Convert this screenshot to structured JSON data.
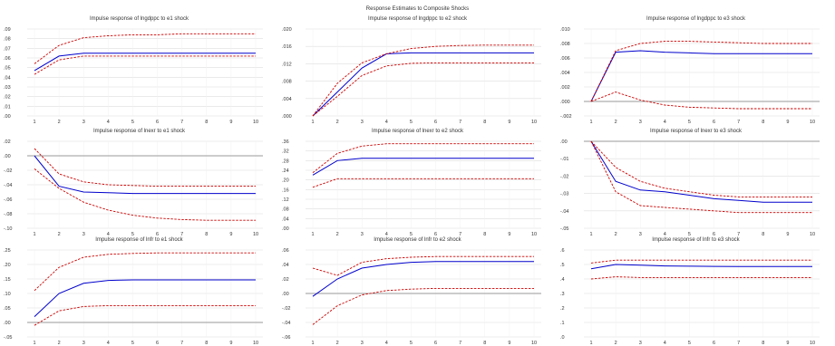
{
  "title": "Response Estimates to Composite Shocks",
  "x_ticks": [
    "1",
    "2",
    "3",
    "4",
    "5",
    "6",
    "7",
    "8",
    "9",
    "10"
  ],
  "colors": {
    "response": "#0000cc",
    "band": "#cc0000",
    "grid": "#dddddd",
    "zero": "#9a9a9a"
  },
  "chart_data": [
    {
      "type": "line",
      "title": "Impulse response of lngdppc to e1 shock",
      "yticks": [
        ".00",
        ".01",
        ".02",
        ".03",
        ".04",
        ".05",
        ".06",
        ".07",
        ".08",
        ".09"
      ],
      "ylim": [
        0,
        0.09
      ],
      "series": [
        {
          "values": [
            0.047,
            0.062,
            0.065,
            0.065,
            0.065,
            0.065,
            0.065,
            0.065,
            0.065,
            0.065
          ]
        },
        {
          "values": [
            0.054,
            0.073,
            0.081,
            0.083,
            0.084,
            0.084,
            0.085,
            0.085,
            0.085,
            0.085
          ]
        },
        {
          "values": [
            0.043,
            0.058,
            0.062,
            0.062,
            0.062,
            0.062,
            0.062,
            0.062,
            0.062,
            0.062
          ]
        }
      ]
    },
    {
      "type": "line",
      "title": "Impulse response of lngdppc to e2 shock",
      "yticks": [
        ".000",
        ".004",
        ".008",
        ".012",
        ".016",
        ".020"
      ],
      "ylim": [
        0,
        0.02
      ],
      "series": [
        {
          "values": [
            0.0,
            0.0055,
            0.011,
            0.0143,
            0.0145,
            0.0145,
            0.0145,
            0.0145,
            0.0145,
            0.0145
          ]
        },
        {
          "values": [
            0.0,
            0.0075,
            0.0122,
            0.0143,
            0.0155,
            0.016,
            0.0162,
            0.0163,
            0.0163,
            0.0163
          ]
        },
        {
          "values": [
            0.0,
            0.0045,
            0.0093,
            0.0115,
            0.0121,
            0.0122,
            0.0122,
            0.0122,
            0.0122,
            0.0122
          ]
        }
      ]
    },
    {
      "type": "line",
      "title": "Impulse response of lngdppc to e3 shock",
      "yticks": [
        "-.002",
        ".000",
        ".002",
        ".004",
        ".006",
        ".008",
        ".010"
      ],
      "ylim": [
        -0.002,
        0.01
      ],
      "zero_line": true,
      "series": [
        {
          "values": [
            0.0,
            0.0068,
            0.007,
            0.0068,
            0.0067,
            0.0066,
            0.0066,
            0.0066,
            0.0066,
            0.0066
          ]
        },
        {
          "values": [
            0.0,
            0.007,
            0.008,
            0.0083,
            0.0083,
            0.0082,
            0.0081,
            0.008,
            0.008,
            0.008
          ]
        },
        {
          "values": [
            0.0,
            0.0013,
            0.0002,
            -0.0005,
            -0.0008,
            -0.0009,
            -0.001,
            -0.001,
            -0.001,
            -0.001
          ]
        }
      ]
    },
    {
      "type": "line",
      "title": "Impulse response of lnexr to e1 shock",
      "yticks": [
        "-.10",
        "-.08",
        "-.06",
        "-.04",
        "-.02",
        ".00",
        ".02"
      ],
      "ylim": [
        -0.1,
        0.02
      ],
      "zero_line": true,
      "series": [
        {
          "values": [
            0.0,
            -0.042,
            -0.05,
            -0.051,
            -0.052,
            -0.052,
            -0.052,
            -0.052,
            -0.052,
            -0.052
          ]
        },
        {
          "values": [
            0.01,
            -0.025,
            -0.036,
            -0.04,
            -0.041,
            -0.042,
            -0.042,
            -0.042,
            -0.042,
            -0.042
          ]
        },
        {
          "values": [
            -0.018,
            -0.045,
            -0.064,
            -0.075,
            -0.082,
            -0.086,
            -0.088,
            -0.089,
            -0.089,
            -0.089
          ]
        }
      ]
    },
    {
      "type": "line",
      "title": "Impulse response of lnexr to e2 shock",
      "yticks": [
        ".00",
        ".04",
        ".08",
        ".12",
        ".16",
        ".20",
        ".24",
        ".28",
        ".32",
        ".36"
      ],
      "ylim": [
        0,
        0.36
      ],
      "series": [
        {
          "values": [
            0.22,
            0.28,
            0.29,
            0.29,
            0.29,
            0.29,
            0.29,
            0.29,
            0.29,
            0.29
          ]
        },
        {
          "values": [
            0.23,
            0.31,
            0.34,
            0.35,
            0.35,
            0.35,
            0.35,
            0.35,
            0.35,
            0.35
          ]
        },
        {
          "values": [
            0.17,
            0.205,
            0.205,
            0.205,
            0.205,
            0.205,
            0.205,
            0.205,
            0.205,
            0.205
          ]
        }
      ]
    },
    {
      "type": "line",
      "title": "Impulse response of lnexr to e3 shock",
      "yticks": [
        "-.05",
        "-.04",
        "-.03",
        "-.02",
        "-.01",
        ".00"
      ],
      "ylim": [
        -0.05,
        0.0
      ],
      "zero_line": true,
      "series": [
        {
          "values": [
            0.0,
            -0.023,
            -0.028,
            -0.029,
            -0.031,
            -0.033,
            -0.034,
            -0.035,
            -0.035,
            -0.035
          ]
        },
        {
          "values": [
            0.0,
            -0.015,
            -0.023,
            -0.027,
            -0.029,
            -0.031,
            -0.032,
            -0.032,
            -0.032,
            -0.032
          ]
        },
        {
          "values": [
            0.0,
            -0.029,
            -0.037,
            -0.038,
            -0.039,
            -0.04,
            -0.041,
            -0.041,
            -0.041,
            -0.041
          ]
        }
      ]
    },
    {
      "type": "line",
      "title": "Impulse response of lnfr to e1 shock",
      "yticks": [
        "-.05",
        ".00",
        ".05",
        ".10",
        ".15",
        ".20",
        ".25"
      ],
      "ylim": [
        -0.05,
        0.25
      ],
      "zero_line": true,
      "series": [
        {
          "values": [
            0.02,
            0.1,
            0.135,
            0.145,
            0.147,
            0.147,
            0.147,
            0.147,
            0.147,
            0.147
          ]
        },
        {
          "values": [
            0.11,
            0.19,
            0.225,
            0.235,
            0.238,
            0.24,
            0.24,
            0.24,
            0.24,
            0.24
          ]
        },
        {
          "values": [
            -0.01,
            0.04,
            0.055,
            0.058,
            0.058,
            0.058,
            0.058,
            0.058,
            0.058,
            0.058
          ]
        }
      ]
    },
    {
      "type": "line",
      "title": "Impulse response of lnfr to e2 shock",
      "yticks": [
        "-.06",
        "-.04",
        "-.02",
        ".00",
        ".02",
        ".04",
        ".06"
      ],
      "ylim": [
        -0.06,
        0.06
      ],
      "zero_line": true,
      "series": [
        {
          "values": [
            -0.004,
            0.02,
            0.035,
            0.04,
            0.043,
            0.044,
            0.044,
            0.044,
            0.044,
            0.044
          ]
        },
        {
          "values": [
            0.035,
            0.025,
            0.043,
            0.048,
            0.05,
            0.051,
            0.051,
            0.051,
            0.051,
            0.051
          ]
        },
        {
          "values": [
            -0.043,
            -0.017,
            -0.002,
            0.004,
            0.006,
            0.007,
            0.007,
            0.007,
            0.007,
            0.007
          ]
        }
      ]
    },
    {
      "type": "line",
      "title": "Impulse response of lnfr to e3 shock",
      "yticks": [
        ".0",
        ".1",
        ".2",
        ".3",
        ".4",
        ".5",
        ".6"
      ],
      "ylim": [
        0,
        0.6
      ],
      "series": [
        {
          "values": [
            0.47,
            0.5,
            0.495,
            0.49,
            0.488,
            0.487,
            0.486,
            0.486,
            0.486,
            0.486
          ]
        },
        {
          "values": [
            0.51,
            0.53,
            0.53,
            0.53,
            0.53,
            0.53,
            0.53,
            0.53,
            0.53,
            0.53
          ]
        },
        {
          "values": [
            0.4,
            0.415,
            0.41,
            0.41,
            0.41,
            0.41,
            0.41,
            0.41,
            0.41,
            0.41
          ]
        }
      ]
    }
  ]
}
